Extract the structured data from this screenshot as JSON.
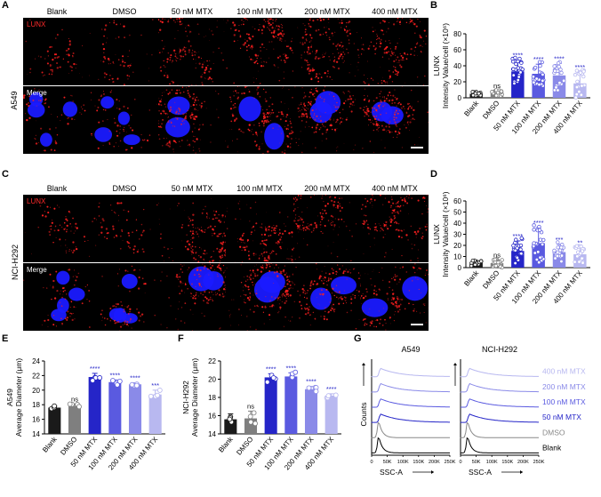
{
  "panels": {
    "A": "A",
    "B": "B",
    "C": "C",
    "D": "D",
    "E": "E",
    "F": "F",
    "G": "G"
  },
  "conditions": [
    "Blank",
    "DMSO",
    "50 nM MTX",
    "100 nM MTX",
    "200 nM MTX",
    "400 nM MTX"
  ],
  "microscopy": {
    "A": {
      "cell_line": "A549",
      "row1_tag": "LUNX",
      "row2_tag": "Merge"
    },
    "C": {
      "cell_line": "NCI-H292",
      "row1_tag": "LUNX",
      "row2_tag": "Merge"
    }
  },
  "colors": {
    "lunx_red": "#ff2020",
    "nucleus_blue": "#1a1aff",
    "bar_colors": [
      "#1a1a1a",
      "#7f7f7f",
      "#2525c8",
      "#5a5ae0",
      "#8a8ae8",
      "#b8b8f0"
    ]
  },
  "chart_data": [
    {
      "id": "B",
      "type": "bar",
      "ylabel_line1": "LUNX",
      "ylabel_line2": "Intensity Value/cell (×10⁶)",
      "categories": [
        "Blank",
        "DMSO",
        "50 nM MTX",
        "100 nM MTX",
        "200 nM MTX",
        "400 nM MTX"
      ],
      "values": [
        5,
        6,
        33,
        30,
        28,
        18
      ],
      "errors": [
        2,
        3,
        14,
        12,
        15,
        14
      ],
      "ylim": [
        0,
        80
      ],
      "yticks": [
        0,
        20,
        40,
        60,
        80
      ],
      "significance": [
        "",
        "ns",
        "****",
        "****",
        "****",
        "****"
      ]
    },
    {
      "id": "D",
      "type": "bar",
      "ylabel_line1": "LUNX",
      "ylabel_line2": "Intensity Value/cell (×10⁶)",
      "categories": [
        "Blank",
        "DMSO",
        "50 nM MTX",
        "100 nM MTX",
        "200 nM MTX",
        "400 nM MTX"
      ],
      "values": [
        4,
        4,
        15,
        22,
        14,
        12
      ],
      "errors": [
        2,
        3,
        9,
        14,
        7,
        6
      ],
      "ylim": [
        0,
        60
      ],
      "yticks": [
        0,
        10,
        20,
        30,
        40,
        50,
        60
      ],
      "significance": [
        "",
        "ns",
        "****",
        "****",
        "***",
        "**"
      ]
    },
    {
      "id": "E",
      "type": "bar",
      "ylabel_line1": "A549",
      "ylabel_line2": "Average Diameter (μm)",
      "categories": [
        "Blank",
        "DMSO",
        "50 nM MTX",
        "100 nM MTX",
        "200 nM MTX",
        "400 nM MTX"
      ],
      "values": [
        17.6,
        17.8,
        21.8,
        21.1,
        20.8,
        19.4
      ],
      "errors": [
        0.2,
        0.3,
        0.5,
        0.3,
        0.2,
        0.6
      ],
      "ylim": [
        14,
        24
      ],
      "yticks": [
        14,
        16,
        18,
        20,
        22,
        24
      ],
      "significance": [
        "",
        "ns",
        "****",
        "****",
        "****",
        "***"
      ]
    },
    {
      "id": "F",
      "type": "bar",
      "ylabel_line1": "NCI-H292",
      "ylabel_line2": "Average Diameter (μm)",
      "categories": [
        "Blank",
        "DMSO",
        "50 nM MTX",
        "100 nM MTX",
        "200 nM MTX",
        "400 nM MTX"
      ],
      "values": [
        15.6,
        15.7,
        20.2,
        20.3,
        18.9,
        18.2
      ],
      "errors": [
        0.6,
        0.8,
        0.4,
        0.4,
        0.3,
        0.2
      ],
      "ylim": [
        14,
        22
      ],
      "yticks": [
        14,
        16,
        18,
        20,
        22
      ],
      "significance": [
        "",
        "ns",
        "****",
        "****",
        "****",
        "****"
      ]
    },
    {
      "id": "G",
      "type": "histogram",
      "xlabel": "SSC-A",
      "ylabel": "Counts",
      "xticks": [
        "0",
        "50K",
        "100K",
        "150K",
        "200K",
        "250K"
      ],
      "cell_lines": [
        "A549",
        "NCI-H292"
      ],
      "series": [
        {
          "name": "400 nM MTX",
          "color": "#b8b8f0"
        },
        {
          "name": "200 nM MTX",
          "color": "#8a8ae8"
        },
        {
          "name": "100 nM MTX",
          "color": "#5a5ae0"
        },
        {
          "name": "50 nM MTX",
          "color": "#2525c8"
        },
        {
          "name": "DMSO",
          "color": "#888888"
        },
        {
          "name": "Blank",
          "color": "#000000"
        }
      ]
    }
  ]
}
